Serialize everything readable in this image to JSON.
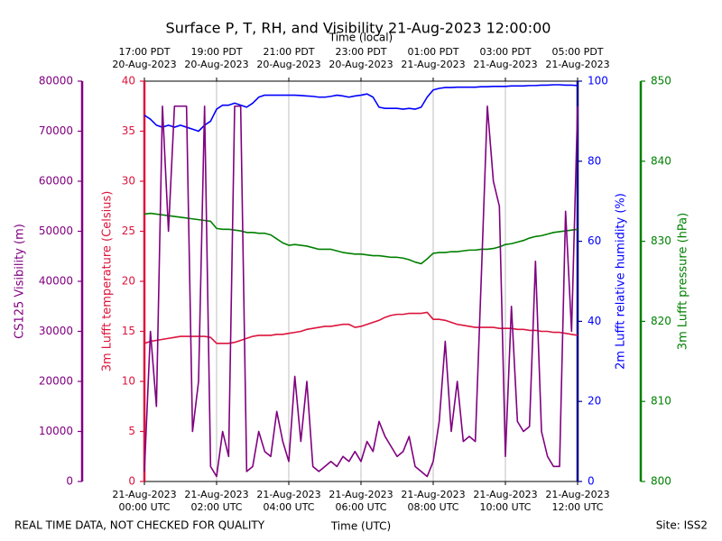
{
  "chart_data": {
    "type": "line",
    "title": "Surface P, T, RH, and Visibility 21-Aug-2023 12:00:00",
    "xlabel": "Time (UTC)",
    "x2label": "Time (local)",
    "footer_left": "REAL TIME DATA, NOT CHECKED FOR QUALITY",
    "footer_right": "Site: ISS2",
    "grid": true,
    "xlim": [
      "2023-08-21 00:00",
      "2023-08-21 12:00"
    ],
    "xticks": [
      {
        "value": "2023-08-21 00:00",
        "label": "21-Aug-2023\n00:00 UTC"
      },
      {
        "value": "2023-08-21 02:00",
        "label": "21-Aug-2023\n02:00 UTC"
      },
      {
        "value": "2023-08-21 04:00",
        "label": "21-Aug-2023\n04:00 UTC"
      },
      {
        "value": "2023-08-21 06:00",
        "label": "21-Aug-2023\n06:00 UTC"
      },
      {
        "value": "2023-08-21 08:00",
        "label": "21-Aug-2023\n08:00 UTC"
      },
      {
        "value": "2023-08-21 10:00",
        "label": "21-Aug-2023\n10:00 UTC"
      },
      {
        "value": "2023-08-21 12:00",
        "label": "21-Aug-2023\n12:00 UTC"
      }
    ],
    "x2ticks": [
      {
        "value": "2023-08-21 00:00",
        "label": "17:00 PDT\n20-Aug-2023"
      },
      {
        "value": "2023-08-21 02:00",
        "label": "19:00 PDT\n20-Aug-2023"
      },
      {
        "value": "2023-08-21 04:00",
        "label": "21:00 PDT\n20-Aug-2023"
      },
      {
        "value": "2023-08-21 06:00",
        "label": "23:00 PDT\n20-Aug-2023"
      },
      {
        "value": "2023-08-21 08:00",
        "label": "01:00 PDT\n21-Aug-2023"
      },
      {
        "value": "2023-08-21 10:00",
        "label": "03:00 PDT\n21-Aug-2023"
      },
      {
        "value": "2023-08-21 12:00",
        "label": "05:00 PDT\n21-Aug-2023"
      }
    ],
    "axes": [
      {
        "label": "CS125 Visibility (m)",
        "color": "#800080",
        "lim": [
          0,
          80000
        ],
        "ticks": [
          0,
          10000,
          20000,
          30000,
          40000,
          50000,
          60000,
          70000,
          80000
        ]
      },
      {
        "label": "3m Lufft temperature (Celsius)",
        "color": "#dc143c",
        "lim": [
          0,
          40
        ],
        "ticks": [
          0,
          5,
          10,
          15,
          20,
          25,
          30,
          35,
          40
        ]
      },
      {
        "label": "2m Lufft relative humidity (%)",
        "color": "#0000ff",
        "lim": [
          0,
          100
        ],
        "ticks": [
          0,
          20,
          40,
          60,
          80,
          100
        ]
      },
      {
        "label": "3m Lufft pressure (hPa)",
        "color": "#008000",
        "lim": [
          800,
          850
        ],
        "ticks": [
          800,
          810,
          820,
          830,
          840,
          850
        ]
      }
    ],
    "x": [
      "2023-08-21 00:00",
      "2023-08-21 00:10",
      "2023-08-21 00:20",
      "2023-08-21 00:30",
      "2023-08-21 00:40",
      "2023-08-21 00:50",
      "2023-08-21 01:00",
      "2023-08-21 01:10",
      "2023-08-21 01:20",
      "2023-08-21 01:30",
      "2023-08-21 01:40",
      "2023-08-21 01:50",
      "2023-08-21 02:00",
      "2023-08-21 02:10",
      "2023-08-21 02:20",
      "2023-08-21 02:30",
      "2023-08-21 02:40",
      "2023-08-21 02:50",
      "2023-08-21 03:00",
      "2023-08-21 03:10",
      "2023-08-21 03:20",
      "2023-08-21 03:30",
      "2023-08-21 03:40",
      "2023-08-21 03:50",
      "2023-08-21 04:00",
      "2023-08-21 04:10",
      "2023-08-21 04:20",
      "2023-08-21 04:30",
      "2023-08-21 04:40",
      "2023-08-21 04:50",
      "2023-08-21 05:00",
      "2023-08-21 05:10",
      "2023-08-21 05:20",
      "2023-08-21 05:30",
      "2023-08-21 05:40",
      "2023-08-21 05:50",
      "2023-08-21 06:00",
      "2023-08-21 06:10",
      "2023-08-21 06:20",
      "2023-08-21 06:30",
      "2023-08-21 06:40",
      "2023-08-21 06:50",
      "2023-08-21 07:00",
      "2023-08-21 07:10",
      "2023-08-21 07:20",
      "2023-08-21 07:30",
      "2023-08-21 07:40",
      "2023-08-21 07:50",
      "2023-08-21 08:00",
      "2023-08-21 08:10",
      "2023-08-21 08:20",
      "2023-08-21 08:30",
      "2023-08-21 08:40",
      "2023-08-21 08:50",
      "2023-08-21 09:00",
      "2023-08-21 09:10",
      "2023-08-21 09:20",
      "2023-08-21 09:30",
      "2023-08-21 09:40",
      "2023-08-21 09:50",
      "2023-08-21 10:00",
      "2023-08-21 10:10",
      "2023-08-21 10:20",
      "2023-08-21 10:30",
      "2023-08-21 10:40",
      "2023-08-21 10:50",
      "2023-08-21 11:00",
      "2023-08-21 11:10",
      "2023-08-21 11:20",
      "2023-08-21 11:30",
      "2023-08-21 11:40",
      "2023-08-21 11:50",
      "2023-08-21 12:00"
    ],
    "series": [
      {
        "axis": 3,
        "color": "#008000",
        "values": [
          833.4,
          833.5,
          833.4,
          833.3,
          833.2,
          833.1,
          833.0,
          832.9,
          832.8,
          832.7,
          832.6,
          832.5,
          831.6,
          831.5,
          831.5,
          831.4,
          831.3,
          831.1,
          831.1,
          831.0,
          831.0,
          830.8,
          830.3,
          829.8,
          829.5,
          829.6,
          829.5,
          829.4,
          829.2,
          829.0,
          829.0,
          829.0,
          828.8,
          828.6,
          828.5,
          828.4,
          828.4,
          828.3,
          828.2,
          828.2,
          828.1,
          828.0,
          828.0,
          827.9,
          827.7,
          827.4,
          827.2,
          827.8,
          828.5,
          828.6,
          828.6,
          828.7,
          828.7,
          828.8,
          828.9,
          828.9,
          829.0,
          829.0,
          829.1,
          829.3,
          829.6,
          829.7,
          829.9,
          830.1,
          830.4,
          830.6,
          830.7,
          830.9,
          831.1,
          831.2,
          831.3,
          831.4,
          831.5
        ]
      },
      {
        "axis": 2,
        "color": "#0000ff",
        "values": [
          91.5,
          90.5,
          89.0,
          88.5,
          89.0,
          88.5,
          89.0,
          88.5,
          88.0,
          87.5,
          89.0,
          90.0,
          93.0,
          94.0,
          94.0,
          94.5,
          94.0,
          93.5,
          94.5,
          96.0,
          96.5,
          96.5,
          96.5,
          96.5,
          96.5,
          96.5,
          96.4,
          96.3,
          96.2,
          96.0,
          96.0,
          96.2,
          96.5,
          96.3,
          96.0,
          96.3,
          96.5,
          96.8,
          96.0,
          93.5,
          93.2,
          93.2,
          93.2,
          93.0,
          93.2,
          93.0,
          93.5,
          96.0,
          97.8,
          98.2,
          98.4,
          98.4,
          98.5,
          98.5,
          98.5,
          98.5,
          98.6,
          98.6,
          98.7,
          98.7,
          98.7,
          98.8,
          98.8,
          98.8,
          98.9,
          98.9,
          99.0,
          99.0,
          99.1,
          99.1,
          99.0,
          99.0,
          98.9
        ]
      },
      {
        "axis": 1,
        "color": "#dc143c",
        "values": [
          13.8,
          14.0,
          14.1,
          14.2,
          14.3,
          14.4,
          14.5,
          14.5,
          14.5,
          14.5,
          14.5,
          14.4,
          13.8,
          13.8,
          13.8,
          13.9,
          14.1,
          14.3,
          14.5,
          14.6,
          14.6,
          14.6,
          14.7,
          14.7,
          14.8,
          14.9,
          15.0,
          15.2,
          15.3,
          15.4,
          15.5,
          15.5,
          15.6,
          15.7,
          15.7,
          15.4,
          15.5,
          15.7,
          15.9,
          16.1,
          16.4,
          16.6,
          16.7,
          16.7,
          16.8,
          16.8,
          16.8,
          16.9,
          16.2,
          16.2,
          16.1,
          15.9,
          15.7,
          15.6,
          15.5,
          15.4,
          15.4,
          15.4,
          15.4,
          15.3,
          15.3,
          15.3,
          15.2,
          15.2,
          15.1,
          15.1,
          15.0,
          15.0,
          14.9,
          14.9,
          14.8,
          14.7,
          14.6
        ]
      },
      {
        "axis": 0,
        "color": "#800080",
        "values": [
          2000,
          30000,
          15000,
          75000,
          50000,
          75000,
          75000,
          75000,
          10000,
          20000,
          75000,
          3000,
          1000,
          10000,
          5000,
          75000,
          75000,
          2000,
          3000,
          10000,
          6000,
          5000,
          14000,
          8000,
          4000,
          21000,
          8000,
          20000,
          3000,
          2000,
          3000,
          4000,
          3000,
          5000,
          4000,
          6000,
          4000,
          8000,
          6000,
          12000,
          9000,
          7000,
          5000,
          6000,
          9000,
          3000,
          2000,
          1000,
          4000,
          12000,
          28000,
          10000,
          20000,
          8000,
          9000,
          8000,
          41000,
          75000,
          60000,
          55000,
          5000,
          35000,
          12000,
          10000,
          11000,
          44000,
          10000,
          5000,
          3000,
          3000,
          54000,
          30000,
          75000
        ]
      }
    ]
  }
}
